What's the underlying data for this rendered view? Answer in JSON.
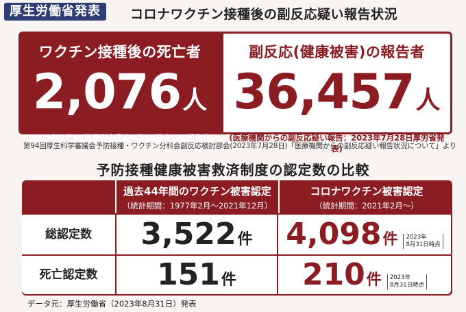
{
  "ministry_label": "厚生労働省発表",
  "headline": "コロナワクチン接種後の副反応疑い報告状況",
  "deaths_panel": {
    "title": "ワクチン接種後の死亡者",
    "number": "2,076",
    "unit": "人",
    "note": "(2023年7月28日厚労省発表4月30日までの報告分)"
  },
  "adverse_panel": {
    "title": "副反応(健康被害)の報告者",
    "number": "36,457",
    "unit": "人",
    "note": "(医療機関からの副反応疑い報告：2023年7月28日厚労省発表)"
  },
  "source_line": "第94回厚生科学審議会予防接種・ワクチン分科会副反応検討部会(2023年7月28日)「医療機関からの副反応疑い報告状況について」より",
  "section_title": "予防接種健康被害救済制度の認定数の比較",
  "table": {
    "col1_title": "過去44年間のワクチン被害認定",
    "col1_sub": "（統計期間：1977年2月〜2021年12月）",
    "col2_title": "コロナワクチン被害認定",
    "col2_sub": "（統計期間：2021年2月〜）",
    "rows": [
      {
        "label": "総認定数",
        "past": "3,522",
        "covid": "4,098",
        "unit": "件",
        "asof_line1": "2023年",
        "asof_line2": "8月31日時点"
      },
      {
        "label": "死亡認定数",
        "past": "151",
        "covid": "210",
        "unit": "件",
        "asof_line1": "2023年",
        "asof_line2": "8月31日時点"
      }
    ]
  },
  "data_source": "データ元：厚生労働省（2023年8月31日）発表",
  "colors": {
    "accent": "#8b1c22",
    "ministry": "#2c3e74"
  }
}
